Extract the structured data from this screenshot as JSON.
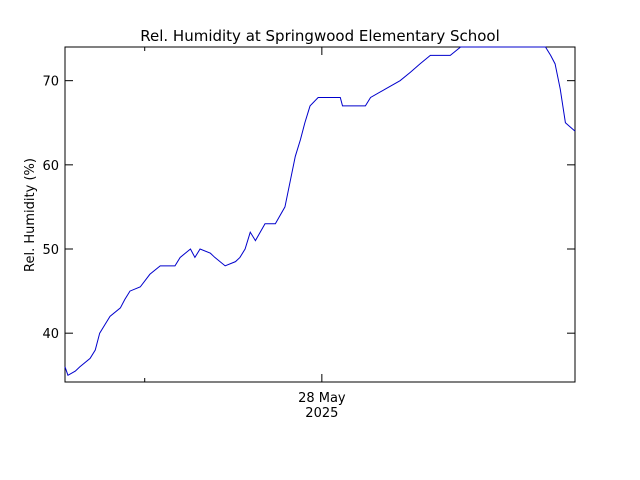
{
  "chart_data": {
    "type": "line",
    "title": "Rel. Humidity at Springwood Elementary School",
    "ylabel": "Rel. Humidity (%)",
    "x": [
      0,
      0.4,
      1.4,
      2.0,
      3.4,
      4.1,
      4.7,
      5.4,
      6.1,
      7.5,
      8.1,
      8.8,
      10.2,
      11.5,
      12.9,
      14.9,
      15.6,
      17.0,
      17.6,
      18.3,
      19.7,
      20.3,
      21.7,
      23.1,
      23.7,
      24.4,
      25.1,
      25.8,
      27.1,
      28.5,
      29.8,
      30.5,
      31.2,
      31.9,
      32.5,
      33.2,
      34.3,
      37.3,
      37.6,
      40.7,
      41.4,
      43.4,
      45.4,
      46.8,
      48.1,
      49.5,
      52.2,
      53.6,
      65.1,
      65.8,
      66.4,
      67.1,
      67.8,
      69.1
    ],
    "series": [
      {
        "name": "Rel. Humidity",
        "color": "#0000cc",
        "values": [
          36,
          35,
          35.5,
          36,
          37,
          38,
          40,
          41,
          42,
          43,
          44,
          45,
          45.5,
          47,
          48,
          48,
          49,
          50,
          49,
          50,
          49.5,
          49,
          48,
          48.5,
          49,
          50,
          52,
          51,
          53,
          53,
          55,
          58,
          61,
          63,
          65,
          67,
          68,
          68,
          67,
          67,
          68,
          69,
          70,
          71,
          72,
          73,
          73,
          74,
          74,
          73,
          72,
          69,
          65,
          64
        ]
      }
    ],
    "xlim": [
      0,
      69.1
    ],
    "xticks": [
      {
        "value": 34.8,
        "label": "28 May\n2025"
      }
    ],
    "xminorticks": [
      10.8
    ],
    "ylim": [
      34.2,
      74
    ],
    "yticks": [
      40,
      50,
      60,
      70
    ]
  }
}
